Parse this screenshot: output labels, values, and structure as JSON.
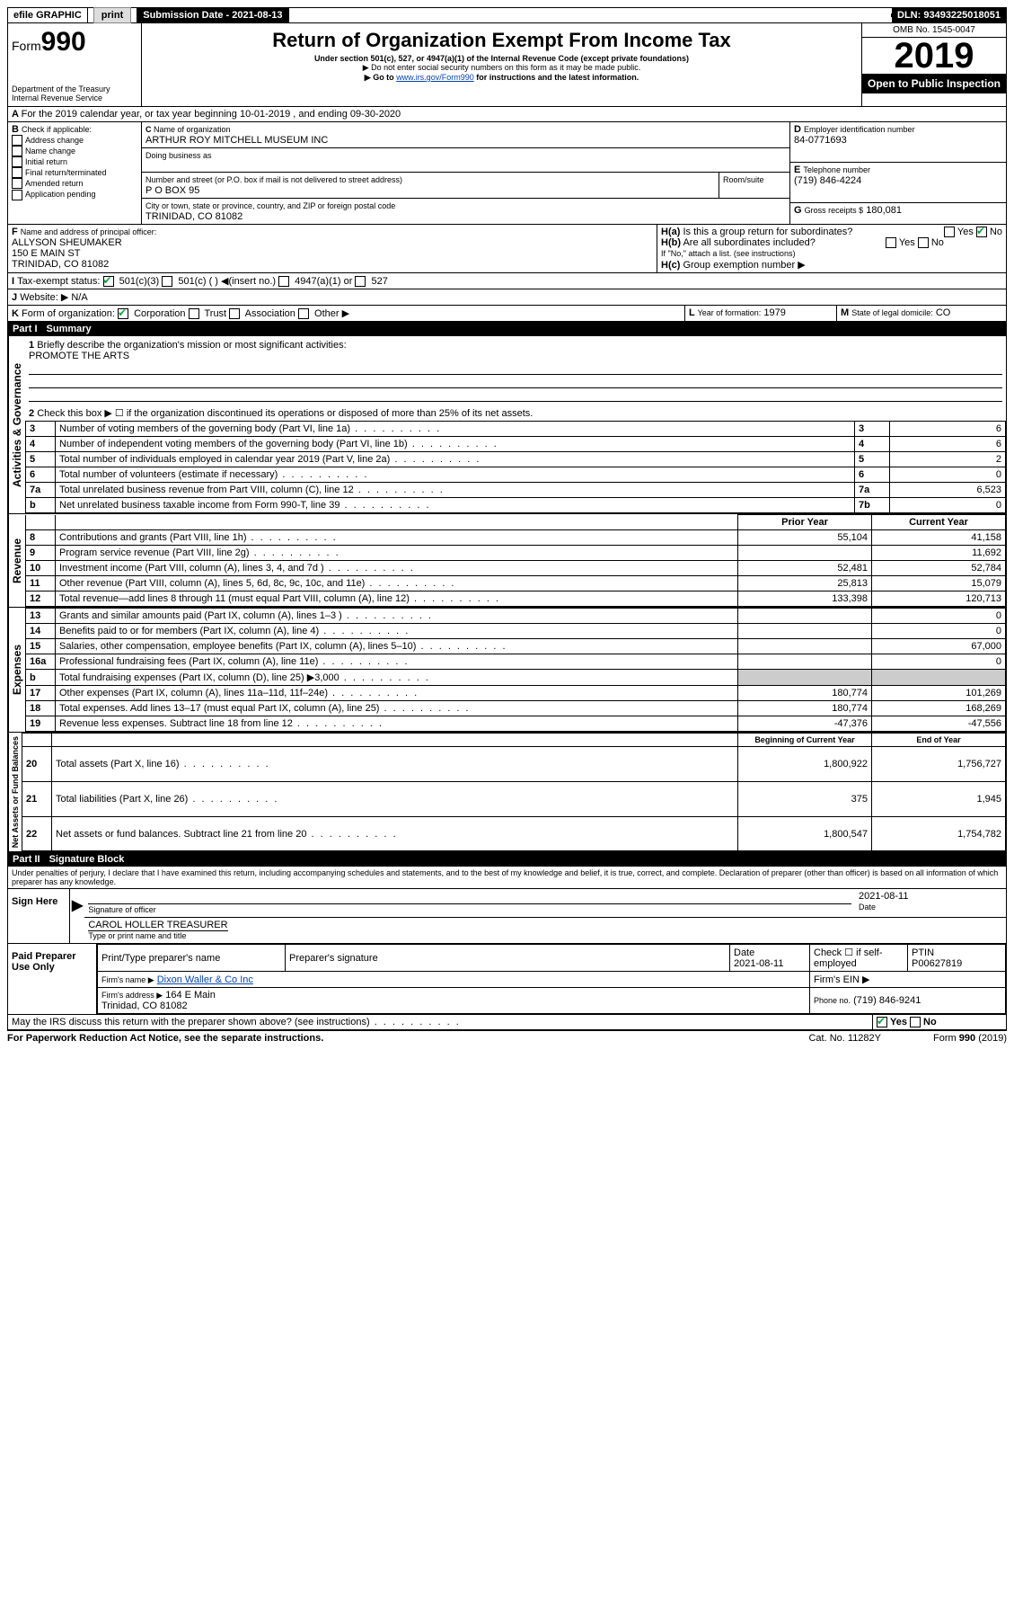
{
  "topbar": {
    "efile": "efile GRAPHIC",
    "print": "print",
    "subdate_lbl": "Submission Date - 2021-08-13",
    "dln": "DLN: 93493225018051"
  },
  "header": {
    "form_word": "Form",
    "form_num": "990",
    "dept": "Department of the Treasury",
    "irs": "Internal Revenue Service",
    "title": "Return of Organization Exempt From Income Tax",
    "sub1": "Under section 501(c), 527, or 4947(a)(1) of the Internal Revenue Code (except private foundations)",
    "sub2": "▶ Do not enter social security numbers on this form as it may be made public.",
    "sub3a": "▶ Go to ",
    "sub3_link": "www.irs.gov/Form990",
    "sub3b": " for instructions and the latest information.",
    "omb": "OMB No. 1545-0047",
    "year": "2019",
    "open": "Open to Public Inspection"
  },
  "A": {
    "text": "For the 2019 calendar year, or tax year beginning 10-01-2019   , and ending 09-30-2020"
  },
  "B": {
    "lbl": "Check if applicable:",
    "items": [
      "Address change",
      "Name change",
      "Initial return",
      "Final return/terminated",
      "Amended return",
      "Application pending"
    ]
  },
  "C": {
    "lbl": "Name of organization",
    "name": "ARTHUR ROY MITCHELL MUSEUM INC",
    "dba_lbl": "Doing business as",
    "addr_lbl": "Number and street (or P.O. box if mail is not delivered to street address)",
    "room_lbl": "Room/suite",
    "addr": "P O BOX 95",
    "city_lbl": "City or town, state or province, country, and ZIP or foreign postal code",
    "city": "TRINIDAD, CO  81082"
  },
  "D": {
    "lbl": "Employer identification number",
    "val": "84-0771693"
  },
  "E": {
    "lbl": "Telephone number",
    "val": "(719) 846-4224"
  },
  "G": {
    "lbl": "Gross receipts $",
    "val": "180,081"
  },
  "F": {
    "lbl": "Name and address of principal officer:",
    "name": "ALLYSON SHEUMAKER",
    "addr1": "150 E MAIN ST",
    "addr2": "TRINIDAD, CO  81082"
  },
  "H": {
    "a": "Is this a group return for subordinates?",
    "b": "Are all subordinates included?",
    "b_note": "If \"No,\" attach a list. (see instructions)",
    "c": "Group exemption number ▶",
    "yes": "Yes",
    "no": "No"
  },
  "I": {
    "lbl": "Tax-exempt status:",
    "c3": "501(c)(3)",
    "c": "501(c) (   ) ◀(insert no.)",
    "a1": "4947(a)(1) or",
    "527": "527"
  },
  "J": {
    "lbl": "Website: ▶",
    "val": "N/A"
  },
  "K": {
    "lbl": "Form of organization:",
    "corp": "Corporation",
    "trust": "Trust",
    "assoc": "Association",
    "other": "Other ▶"
  },
  "L": {
    "lbl": "Year of formation:",
    "val": "1979"
  },
  "M": {
    "lbl": "State of legal domicile:",
    "val": "CO"
  },
  "part1": {
    "hdr": "Part I",
    "title": "Summary",
    "l1": "Briefly describe the organization's mission or most significant activities:",
    "l1v": "PROMOTE THE ARTS",
    "l2": "Check this box ▶ ☐  if the organization discontinued its operations or disposed of more than 25% of its net assets.",
    "lines": [
      {
        "n": "3",
        "t": "Number of voting members of the governing body (Part VI, line 1a)",
        "box": "3",
        "v": "6"
      },
      {
        "n": "4",
        "t": "Number of independent voting members of the governing body (Part VI, line 1b)",
        "box": "4",
        "v": "6"
      },
      {
        "n": "5",
        "t": "Total number of individuals employed in calendar year 2019 (Part V, line 2a)",
        "box": "5",
        "v": "2"
      },
      {
        "n": "6",
        "t": "Total number of volunteers (estimate if necessary)",
        "box": "6",
        "v": "0"
      },
      {
        "n": "7a",
        "t": "Total unrelated business revenue from Part VIII, column (C), line 12",
        "box": "7a",
        "v": "6,523"
      },
      {
        "n": "b",
        "t": "Net unrelated business taxable income from Form 990-T, line 39",
        "box": "7b",
        "v": "0"
      }
    ],
    "colh1": "Prior Year",
    "colh2": "Current Year",
    "rev": [
      {
        "n": "8",
        "t": "Contributions and grants (Part VIII, line 1h)",
        "p": "55,104",
        "c": "41,158"
      },
      {
        "n": "9",
        "t": "Program service revenue (Part VIII, line 2g)",
        "p": "",
        "c": "11,692"
      },
      {
        "n": "10",
        "t": "Investment income (Part VIII, column (A), lines 3, 4, and 7d )",
        "p": "52,481",
        "c": "52,784"
      },
      {
        "n": "11",
        "t": "Other revenue (Part VIII, column (A), lines 5, 6d, 8c, 9c, 10c, and 11e)",
        "p": "25,813",
        "c": "15,079"
      },
      {
        "n": "12",
        "t": "Total revenue—add lines 8 through 11 (must equal Part VIII, column (A), line 12)",
        "p": "133,398",
        "c": "120,713"
      }
    ],
    "exp": [
      {
        "n": "13",
        "t": "Grants and similar amounts paid (Part IX, column (A), lines 1–3 )",
        "p": "",
        "c": "0"
      },
      {
        "n": "14",
        "t": "Benefits paid to or for members (Part IX, column (A), line 4)",
        "p": "",
        "c": "0"
      },
      {
        "n": "15",
        "t": "Salaries, other compensation, employee benefits (Part IX, column (A), lines 5–10)",
        "p": "",
        "c": "67,000"
      },
      {
        "n": "16a",
        "t": "Professional fundraising fees (Part IX, column (A), line 11e)",
        "p": "",
        "c": "0"
      },
      {
        "n": "b",
        "t": "Total fundraising expenses (Part IX, column (D), line 25) ▶3,000",
        "p": "—shade—",
        "c": "—shade—"
      },
      {
        "n": "17",
        "t": "Other expenses (Part IX, column (A), lines 11a–11d, 11f–24e)",
        "p": "180,774",
        "c": "101,269"
      },
      {
        "n": "18",
        "t": "Total expenses. Add lines 13–17 (must equal Part IX, column (A), line 25)",
        "p": "180,774",
        "c": "168,269"
      },
      {
        "n": "19",
        "t": "Revenue less expenses. Subtract line 18 from line 12",
        "p": "-47,376",
        "c": "-47,556"
      }
    ],
    "colh3": "Beginning of Current Year",
    "colh4": "End of Year",
    "net": [
      {
        "n": "20",
        "t": "Total assets (Part X, line 16)",
        "p": "1,800,922",
        "c": "1,756,727"
      },
      {
        "n": "21",
        "t": "Total liabilities (Part X, line 26)",
        "p": "375",
        "c": "1,945"
      },
      {
        "n": "22",
        "t": "Net assets or fund balances. Subtract line 21 from line 20",
        "p": "1,800,547",
        "c": "1,754,782"
      }
    ],
    "vlab": {
      "gov": "Activities & Governance",
      "rev": "Revenue",
      "exp": "Expenses",
      "net": "Net Assets or Fund Balances"
    }
  },
  "part2": {
    "hdr": "Part II",
    "title": "Signature Block",
    "decl": "Under penalties of perjury, I declare that I have examined this return, including accompanying schedules and statements, and to the best of my knowledge and belief, it is true, correct, and complete. Declaration of preparer (other than officer) is based on all information of which preparer has any knowledge.",
    "sign_here": "Sign Here",
    "sig_off": "Signature of officer",
    "date": "Date",
    "date_v": "2021-08-11",
    "name_title": "CAROL HOLLER  TREASURER",
    "name_lbl": "Type or print name and title",
    "paid": "Paid Preparer Use Only",
    "p_name_lbl": "Print/Type preparer's name",
    "p_sig_lbl": "Preparer's signature",
    "p_date_lbl": "Date",
    "p_date": "2021-08-11",
    "p_check": "Check ☐ if self-employed",
    "ptin_lbl": "PTIN",
    "ptin": "P00627819",
    "firm_name_lbl": "Firm's name  ▶",
    "firm_name": "Dixon Waller & Co Inc",
    "firm_ein_lbl": "Firm's EIN ▶",
    "firm_addr_lbl": "Firm's address ▶",
    "firm_addr1": "164 E Main",
    "firm_addr2": "Trinidad, CO  81082",
    "firm_phone_lbl": "Phone no.",
    "firm_phone": "(719) 846-9241",
    "discuss": "May the IRS discuss this return with the preparer shown above? (see instructions)"
  },
  "footer": {
    "pra": "For Paperwork Reduction Act Notice, see the separate instructions.",
    "cat": "Cat. No. 11282Y",
    "form": "Form 990 (2019)"
  }
}
